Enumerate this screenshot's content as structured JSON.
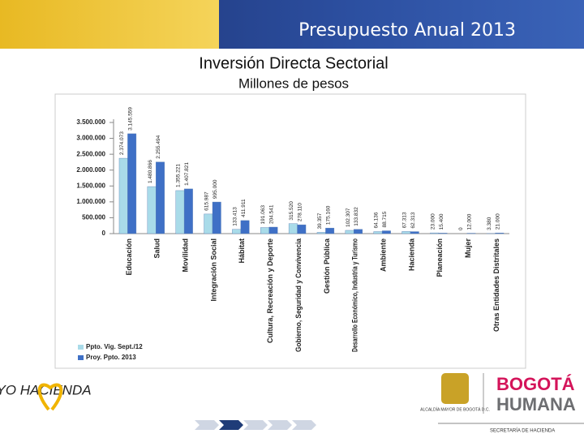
{
  "header": {
    "title": "Presupuesto Anual 2013"
  },
  "chart_data": {
    "type": "bar",
    "title": "Inversión Directa Sectorial",
    "subtitle": "Millones de pesos",
    "categories": [
      "Educación",
      "Salud",
      "Movilidad",
      "Integración Social",
      "Hábitat",
      "Cultura, Recreación y Deporte",
      "Gobierno, Seguridad y Convivencia",
      "Gestión Pública",
      "Desarrollo Económico, Industria y Turismo",
      "Ambiente",
      "Hacienda",
      "Planeación",
      "Mujer",
      "Otras Entidades Distritales"
    ],
    "series": [
      {
        "name": "Ppto. Vig. Sept./12",
        "color": "#a9dbe9",
        "values": [
          2374073,
          1480866,
          1355221,
          615987,
          133413,
          191063,
          315520,
          39357,
          102307,
          64136,
          67313,
          23000,
          0,
          3380
        ],
        "value_labels": [
          "2.374.073",
          "1.480.866",
          "1.355.221",
          "615.987",
          "133.413",
          "191.063",
          "315.520",
          "39.357",
          "102.307",
          "64.136",
          "67.313",
          "23.000",
          "0",
          "3.380"
        ]
      },
      {
        "name": "Proy. Ppto. 2013",
        "color": "#3f70c6",
        "values": [
          3145559,
          2255494,
          1407821,
          995000,
          411911,
          204541,
          278110,
          175160,
          133832,
          88715,
          62313,
          15400,
          12000,
          21000
        ],
        "value_labels": [
          "3.145.559",
          "2.255.494",
          "1.407.821",
          "995.000",
          "411.911",
          "204.541",
          "278.110",
          "175.160",
          "133.832",
          "88.715",
          "62.313",
          "15.400",
          "12.000",
          "21.000"
        ]
      }
    ],
    "ylim": [
      0,
      3500000
    ],
    "yticks": [
      0,
      {
        "value": 500000,
        "label": "500.000"
      },
      {
        "value": 1000000,
        "label": "1.000.000"
      },
      {
        "value": 1500000,
        "label": "1.500.000"
      },
      {
        "value": 2000000,
        "label": "2.000.000"
      },
      {
        "value": 2500000,
        "label": "2.500.000"
      },
      {
        "value": 3000000,
        "label": "3.000.000"
      },
      {
        "value": 3500000,
        "label": "3.500.000"
      }
    ],
    "grid": false,
    "legend": "bottom-left"
  },
  "footer": {
    "logo_left": "YO HACIENDA",
    "logo_crest": "ALCALDÍA MAYOR DE BOGOTÁ D.C.",
    "logo_right_1": "BOGOTÁ",
    "logo_right_2": "HUMANA",
    "department": "SECRETARÍA DE HACIENDA"
  }
}
